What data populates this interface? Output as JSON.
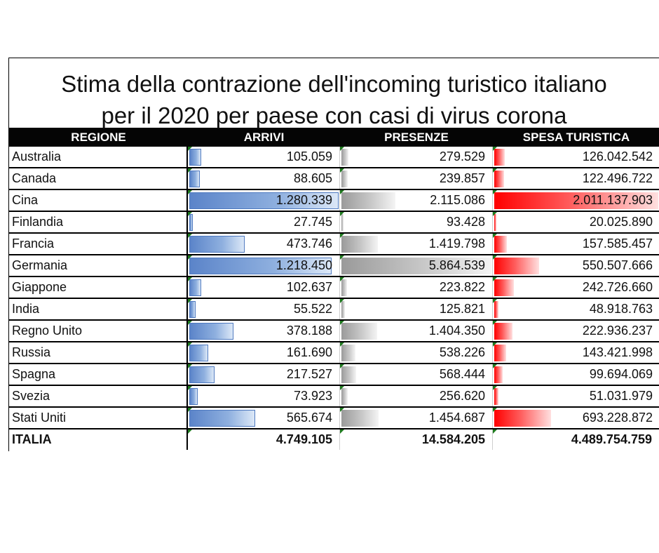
{
  "title_lines": [
    "Stima della contrazione dell'incoming turistico italiano",
    "per il 2020 per paese con casi di virus corona"
  ],
  "headers": [
    "REGIONE",
    "ARRIVI",
    "PRESENZE",
    "SPESA TURISTICA"
  ],
  "rows": [
    {
      "regione": "Australia",
      "arrivi": "105.059",
      "presenze": "279.529",
      "spesa": "126.042.542"
    },
    {
      "regione": "Canada",
      "arrivi": "88.605",
      "presenze": "239.857",
      "spesa": "122.496.722"
    },
    {
      "regione": "Cina",
      "arrivi": "1.280.339",
      "presenze": "2.115.086",
      "spesa": "2.011.137.903"
    },
    {
      "regione": "Finlandia",
      "arrivi": "27.745",
      "presenze": "93.428",
      "spesa": "20.025.890"
    },
    {
      "regione": "Francia",
      "arrivi": "473.746",
      "presenze": "1.419.798",
      "spesa": "157.585.457"
    },
    {
      "regione": "Germania",
      "arrivi": "1.218.450",
      "presenze": "5.864.539",
      "spesa": "550.507.666"
    },
    {
      "regione": "Giappone",
      "arrivi": "102.637",
      "presenze": "223.822",
      "spesa": "242.726.660"
    },
    {
      "regione": "India",
      "arrivi": "55.522",
      "presenze": "125.821",
      "spesa": "48.918.763"
    },
    {
      "regione": "Regno Unito",
      "arrivi": "378.188",
      "presenze": "1.404.350",
      "spesa": "222.936.237"
    },
    {
      "regione": "Russia",
      "arrivi": "161.690",
      "presenze": "538.226",
      "spesa": "143.421.998"
    },
    {
      "regione": "Spagna",
      "arrivi": "217.527",
      "presenze": "568.444",
      "spesa": "99.694.069"
    },
    {
      "regione": "Svezia",
      "arrivi": "73.923",
      "presenze": "256.620",
      "spesa": "51.031.979"
    },
    {
      "regione": "Stati Uniti",
      "arrivi": "565.674",
      "presenze": "1.454.687",
      "spesa": "693.228.872"
    }
  ],
  "total": {
    "regione": "ITALIA",
    "arrivi": "4.749.105",
    "presenze": "14.584.205",
    "spesa": "4.489.754.759"
  },
  "data_bar_colors": {
    "arrivi": "#5b84c9",
    "presenze": "#9a9a9a",
    "spesa": "#ff0000"
  }
}
